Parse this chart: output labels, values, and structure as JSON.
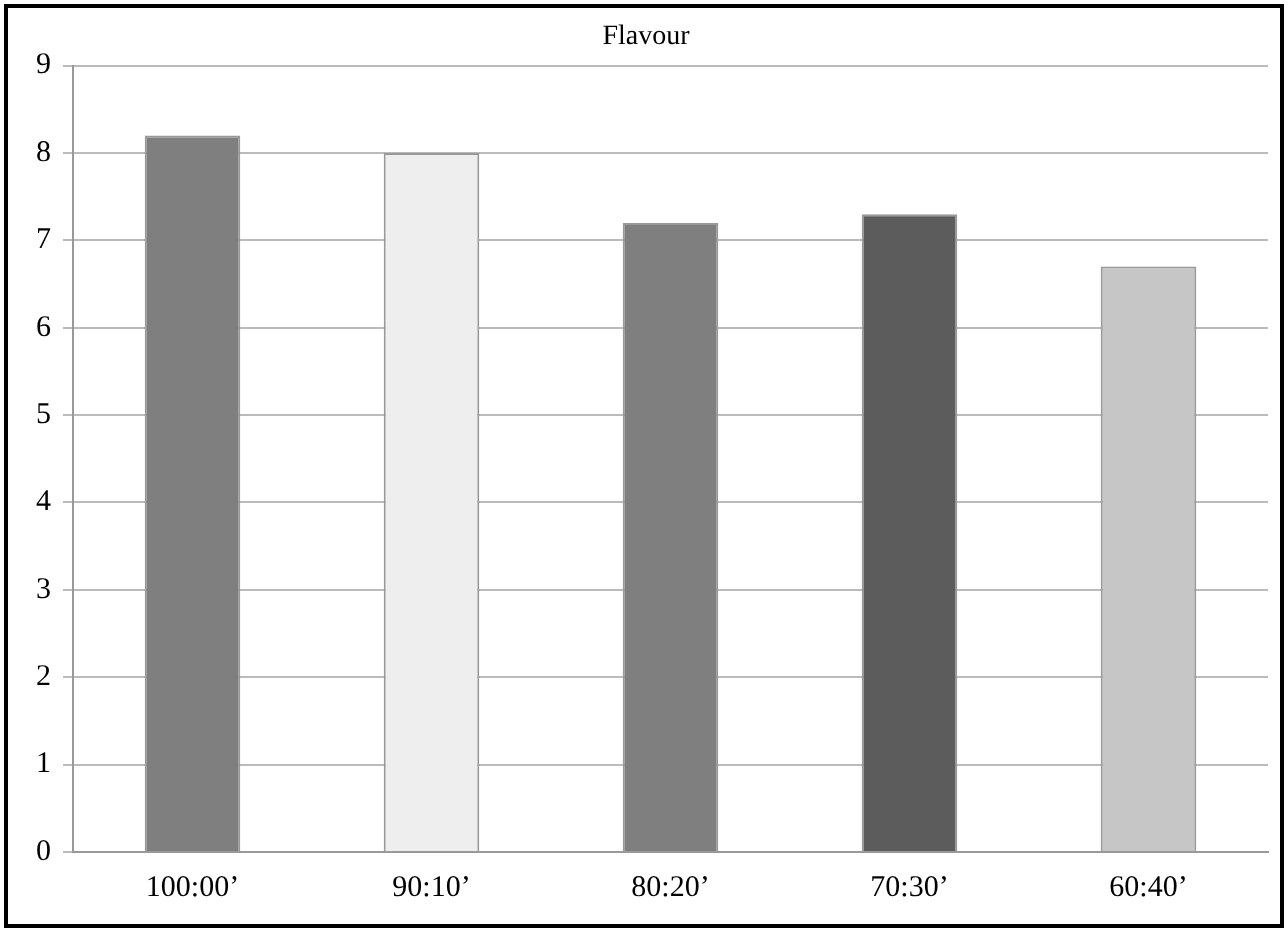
{
  "chart_data": {
    "type": "bar",
    "title": "Flavour",
    "categories": [
      "100:00’",
      "90:10’",
      "80:20’",
      "70:30’",
      "60:40’"
    ],
    "values": [
      8.2,
      8.0,
      7.2,
      7.3,
      6.7
    ],
    "colors": [
      "#7f7f7f",
      "#eeeeee",
      "#7f7f7f",
      "#5c5c5c",
      "#c6c6c6"
    ],
    "ylim": [
      0,
      9
    ],
    "yticks": [
      0,
      1,
      2,
      3,
      4,
      5,
      6,
      7,
      8,
      9
    ],
    "grid": "y",
    "legend": false
  }
}
